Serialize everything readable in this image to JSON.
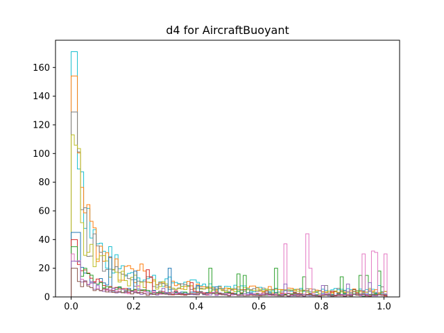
{
  "chart_data": {
    "type": "histogram-step",
    "title": "d4 for AircraftBuoyant",
    "xlabel": "",
    "ylabel": "",
    "xlim": [
      -0.05,
      1.05
    ],
    "ylim": [
      0,
      179
    ],
    "x_ticks": [
      0.0,
      0.2,
      0.4,
      0.6,
      0.8,
      1.0
    ],
    "x_tick_labels": [
      "0.0",
      "0.2",
      "0.4",
      "0.6",
      "0.8",
      "1.0"
    ],
    "y_ticks": [
      0,
      20,
      40,
      60,
      80,
      100,
      120,
      140,
      160
    ],
    "y_tick_labels": [
      "0",
      "20",
      "40",
      "60",
      "80",
      "100",
      "120",
      "140",
      "160"
    ],
    "grid": false,
    "legend": "none",
    "bin_width": 0.01,
    "colors": [
      "#1f77b4",
      "#ff7f0e",
      "#2ca02c",
      "#d62728",
      "#9467bd",
      "#8c564b",
      "#e377c2",
      "#7f7f7f",
      "#bcbd22",
      "#17becf"
    ],
    "series": [
      {
        "color": "#17becf",
        "peak": 171,
        "spikes": [
          [
            0.12,
            7
          ],
          [
            0.14,
            10
          ],
          [
            0.17,
            12
          ],
          [
            0.33,
            5
          ],
          [
            0.42,
            9
          ],
          [
            0.98,
            8
          ]
        ]
      },
      {
        "color": "#ff7f0e",
        "peak": 154,
        "spikes": [
          [
            0.16,
            9
          ],
          [
            0.22,
            23
          ],
          [
            0.23,
            18
          ],
          [
            0.26,
            10
          ],
          [
            0.31,
            7
          ],
          [
            0.47,
            4
          ]
        ]
      },
      {
        "color": "#7f7f7f",
        "peak": 129,
        "spikes": [
          [
            0.2,
            6
          ],
          [
            0.35,
            4
          ],
          [
            0.77,
            5
          ],
          [
            0.81,
            8
          ],
          [
            0.85,
            6
          ],
          [
            0.99,
            7
          ]
        ]
      },
      {
        "color": "#bcbd22",
        "peak": 113,
        "spikes": [
          [
            0.1,
            6
          ],
          [
            0.25,
            8
          ],
          [
            0.43,
            3
          ],
          [
            0.5,
            6
          ],
          [
            0.71,
            5
          ],
          [
            0.95,
            6
          ]
        ]
      },
      {
        "color": "#1f77b4",
        "peak": 45,
        "spikes": [
          [
            0.05,
            9
          ],
          [
            0.12,
            28
          ],
          [
            0.2,
            18
          ],
          [
            0.31,
            20
          ],
          [
            0.4,
            8
          ],
          [
            0.46,
            7
          ]
        ]
      },
      {
        "color": "#d62728",
        "peak": 40,
        "spikes": [
          [
            0.24,
            19
          ],
          [
            0.25,
            14
          ],
          [
            0.38,
            10
          ],
          [
            0.55,
            5
          ],
          [
            0.83,
            4
          ]
        ]
      },
      {
        "color": "#2ca02c",
        "peak": 35,
        "spikes": [
          [
            0.44,
            20
          ],
          [
            0.53,
            16
          ],
          [
            0.55,
            15
          ],
          [
            0.65,
            20
          ],
          [
            0.74,
            14
          ],
          [
            0.86,
            14
          ],
          [
            0.92,
            15
          ],
          [
            0.94,
            15
          ],
          [
            0.98,
            18
          ]
        ]
      },
      {
        "color": "#e377c2",
        "peak": 30,
        "spikes": [
          [
            0.21,
            8
          ],
          [
            0.68,
            37
          ],
          [
            0.75,
            44
          ],
          [
            0.76,
            20
          ],
          [
            0.93,
            30
          ],
          [
            0.96,
            32
          ],
          [
            0.97,
            31
          ],
          [
            1.0,
            30
          ]
        ]
      },
      {
        "color": "#9467bd",
        "peak": 25,
        "spikes": [
          [
            0.29,
            6
          ],
          [
            0.68,
            9
          ],
          [
            0.8,
            8
          ],
          [
            0.88,
            9
          ],
          [
            0.95,
            10
          ]
        ]
      },
      {
        "color": "#8c564b",
        "peak": 20,
        "spikes": [
          [
            0.18,
            5
          ],
          [
            0.28,
            4
          ],
          [
            0.62,
            4
          ],
          [
            0.9,
            5
          ]
        ]
      }
    ]
  }
}
